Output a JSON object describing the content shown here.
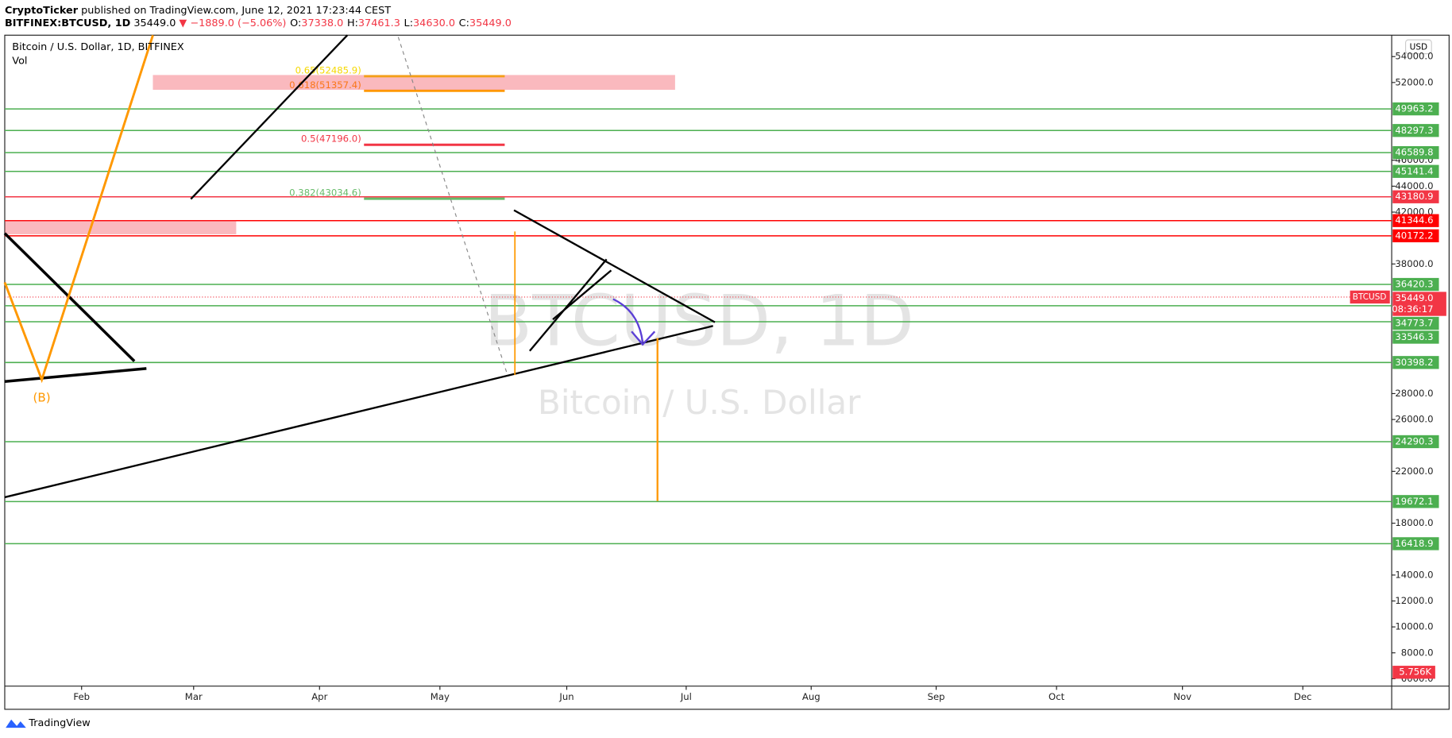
{
  "header": {
    "publisher": "CryptoTicker",
    "published": "published on TradingView.com, June 12, 2021 17:23:44 CEST",
    "symbol": "BITFINEX:BTCUSD, 1D",
    "price": "35449.0",
    "change": "▼ −1889.0 (−5.06%)",
    "ohlc": [
      {
        "key": "O:",
        "value": "37338.0"
      },
      {
        "key": "H:",
        "value": "37461.3"
      },
      {
        "key": "L:",
        "value": "34630.0"
      },
      {
        "key": "C:",
        "value": "35449.0"
      }
    ]
  },
  "chart_data": {
    "type": "price-levels",
    "title": "Bitcoin / U.S. Dollar, 1D, BITFINEX",
    "indicator": "Vol",
    "currency": "USD",
    "watermark": "BTCUSD, 1D",
    "watermark_subtitle": "Bitcoin / U.S. Dollar",
    "annotation": "(B)",
    "ylim": [
      5500,
      55650
    ],
    "yticks": [
      {
        "value": 54000,
        "label": "54000.0"
      },
      {
        "value": 52000,
        "label": "52000.0"
      },
      {
        "value": 46000,
        "label": "46000.0"
      },
      {
        "value": 44000,
        "label": "44000.0"
      },
      {
        "value": 42000,
        "label": "42000.0"
      },
      {
        "value": 38000,
        "label": "38000.0"
      },
      {
        "value": 28000,
        "label": "28000.0"
      },
      {
        "value": 26000,
        "label": "26000.0"
      },
      {
        "value": 22000,
        "label": "22000.0"
      },
      {
        "value": 18000,
        "label": "18000.0"
      },
      {
        "value": 14000,
        "label": "14000.0"
      },
      {
        "value": 12000,
        "label": "12000.0"
      },
      {
        "value": 10000,
        "label": "10000.0"
      },
      {
        "value": 8000,
        "label": "8000.0"
      },
      {
        "value": 6000,
        "label": "6000.0"
      }
    ],
    "months": [
      "Feb",
      "Mar",
      "Apr",
      "May",
      "Jun",
      "Jul",
      "Aug",
      "Sep",
      "Oct",
      "Nov",
      "Dec"
    ],
    "levels": [
      {
        "value": 49963.2,
        "label": "49963.2",
        "color": "#4caf50"
      },
      {
        "value": 48297.3,
        "label": "48297.3",
        "color": "#4caf50"
      },
      {
        "value": 46589.8,
        "label": "46589.8",
        "color": "#4caf50"
      },
      {
        "value": 45141.4,
        "label": "45141.4",
        "color": "#4caf50"
      },
      {
        "value": 43180.9,
        "label": "43180.9",
        "color": "#f23645"
      },
      {
        "value": 41344.6,
        "label": "41344.6",
        "color": "#ff0000"
      },
      {
        "value": 40172.2,
        "label": "40172.2",
        "color": "#ff0000"
      },
      {
        "value": 36420.3,
        "label": "36420.3",
        "color": "#4caf50"
      },
      {
        "value": 34773.7,
        "label": "34773.7",
        "color": "#4caf50"
      },
      {
        "value": 33546.3,
        "label": "33546.3",
        "color": "#4caf50"
      },
      {
        "value": 30398.2,
        "label": "30398.2",
        "color": "#4caf50"
      },
      {
        "value": 24290.3,
        "label": "24290.3",
        "color": "#4caf50"
      },
      {
        "value": 19672.1,
        "label": "19672.1",
        "color": "#4caf50"
      },
      {
        "value": 16418.9,
        "label": "16418.9",
        "color": "#4caf50"
      }
    ],
    "last_price": {
      "value": 35449.0,
      "label": "35449.0",
      "symbol": "BTCUSD",
      "countdown": "08:36:17",
      "color": "#f23645"
    },
    "volume_label": "5.756K",
    "fib": [
      {
        "value": 52485.9,
        "label": "0.65(52485.9)",
        "color": "#f5d800"
      },
      {
        "value": 51357.4,
        "label": "0.618(51357.4)",
        "color": "#ff9800"
      },
      {
        "value": 47196.0,
        "label": "0.5(47196.0)",
        "color": "#f23645"
      },
      {
        "value": 43034.6,
        "label": "0.382(43034.6)",
        "color": "#66bb6a"
      }
    ]
  },
  "footer": "TradingView"
}
